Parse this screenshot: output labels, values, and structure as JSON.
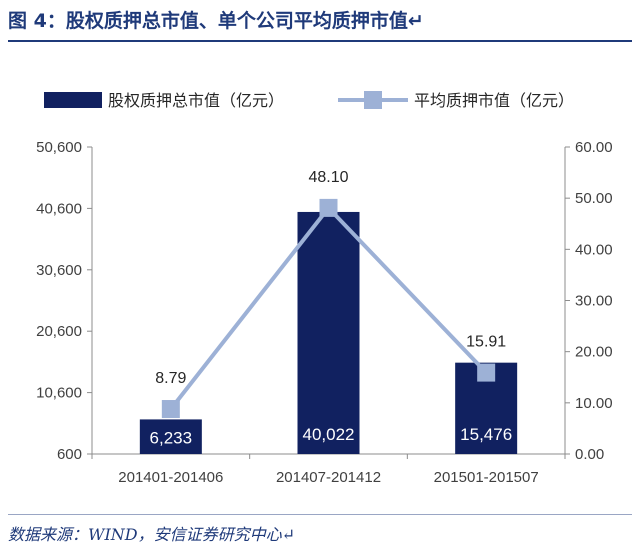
{
  "figure": {
    "title": "图 4：股权质押总市值、单个公司平均质押市值↵",
    "source": "数据来源：WIND，安信证券研究中心↵"
  },
  "chart_data": {
    "type": "bar",
    "categories": [
      "201401-201406",
      "201407-201412",
      "201501-201507"
    ],
    "series": [
      {
        "name": "股权质押总市值（亿元）",
        "chart_type": "bar",
        "axis": "left",
        "color": "#112160",
        "values": [
          6233,
          40022,
          15476
        ],
        "labels": [
          "6,233",
          "40,022",
          "15,476"
        ]
      },
      {
        "name": "平均质押市值（亿元）",
        "chart_type": "line",
        "axis": "right",
        "color": "#9db1d6",
        "marker": "square",
        "values": [
          8.79,
          48.1,
          15.91
        ],
        "labels": [
          "8.79",
          "48.10",
          "15.91"
        ]
      }
    ],
    "y_left": {
      "range": [
        600,
        50600
      ],
      "ticks": [
        600,
        10600,
        20600,
        30600,
        40600,
        50600
      ],
      "tick_labels": [
        "600",
        "10,600",
        "20,600",
        "30,600",
        "40,600",
        "50,600"
      ]
    },
    "y_right": {
      "range": [
        0,
        60
      ],
      "ticks": [
        0,
        10,
        20,
        30,
        40,
        50,
        60
      ],
      "tick_labels": [
        "0.00",
        "10.00",
        "20.00",
        "30.00",
        "40.00",
        "50.00",
        "60.00"
      ]
    },
    "grid": false,
    "legend_position": "top"
  }
}
